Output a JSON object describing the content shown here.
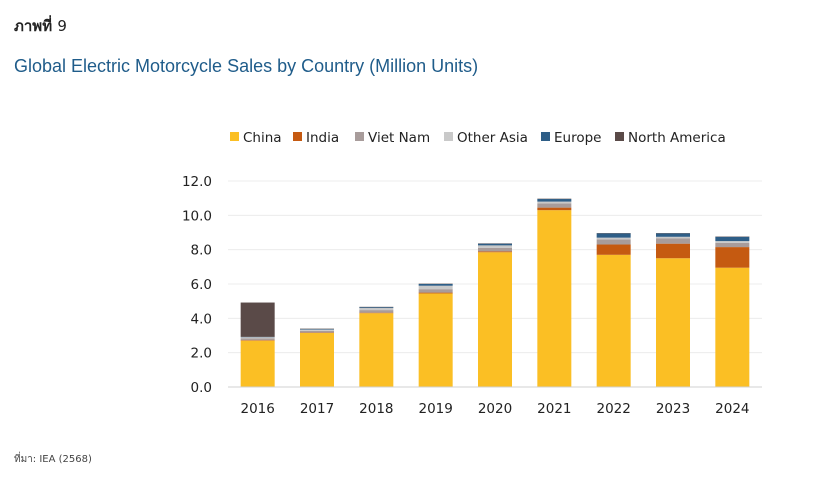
{
  "figure": {
    "label_prefix": "ภาพที่",
    "label_number": "9",
    "title": "Global Electric Motorcycle Sales by Country (Million Units)",
    "source": "ที่มา: IEA (2568)"
  },
  "chart_data": {
    "type": "bar",
    "stacked": true,
    "title": "Global Electric Motorcycle Sales by Country (Million Units)",
    "xlabel": "",
    "ylabel": "",
    "ylim": [
      0,
      12
    ],
    "yticks": [
      0,
      2,
      4,
      6,
      8,
      10,
      12
    ],
    "ytick_labels": [
      "0.0",
      "2.0",
      "4.0",
      "6.0",
      "8.0",
      "10.0",
      "12.0"
    ],
    "grid": true,
    "legend_position": "top",
    "categories": [
      "2016",
      "2017",
      "2018",
      "2019",
      "2020",
      "2021",
      "2022",
      "2023",
      "2024"
    ],
    "series": [
      {
        "name": "China",
        "color": "#fbbf24",
        "values": [
          2.7,
          3.15,
          4.3,
          5.45,
          7.85,
          10.3,
          7.7,
          7.5,
          6.95
        ]
      },
      {
        "name": "India",
        "color": "#c55a11",
        "values": [
          0.03,
          0.02,
          0.03,
          0.05,
          0.05,
          0.15,
          0.6,
          0.85,
          1.2
        ]
      },
      {
        "name": "Viet Nam",
        "color": "#a89c9b",
        "values": [
          0.1,
          0.1,
          0.15,
          0.2,
          0.2,
          0.25,
          0.3,
          0.3,
          0.25
        ]
      },
      {
        "name": "Other Asia",
        "color": "#c9c9c9",
        "values": [
          0.07,
          0.08,
          0.12,
          0.2,
          0.15,
          0.1,
          0.1,
          0.1,
          0.1
        ]
      },
      {
        "name": "Europe",
        "color": "#2e5e87",
        "values": [
          0.02,
          0.03,
          0.05,
          0.1,
          0.1,
          0.15,
          0.25,
          0.2,
          0.25
        ]
      },
      {
        "name": "North America",
        "color": "#5a4a48",
        "values": [
          2.0,
          0.02,
          0.02,
          0.02,
          0.02,
          0.02,
          0.02,
          0.02,
          0.02
        ]
      }
    ]
  }
}
